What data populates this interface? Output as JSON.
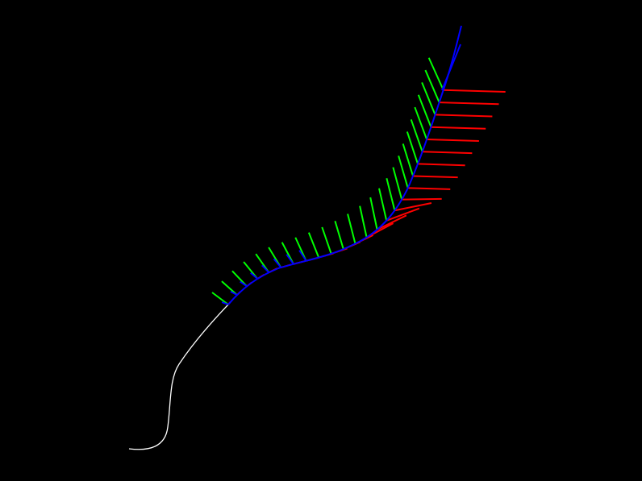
{
  "colors": {
    "background": "#000000",
    "path": "#ffffff",
    "tangent": "#0000ff",
    "normal": "#ff0000",
    "binormal": "#00ff00"
  }
}
